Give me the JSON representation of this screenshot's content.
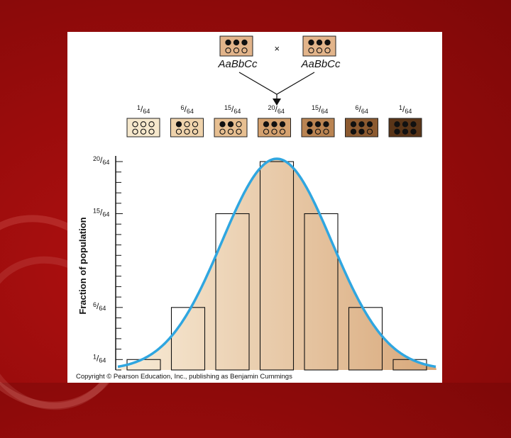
{
  "cross": {
    "parent1": "AaBbCc",
    "parent2": "AaBbCc",
    "operator": "×",
    "parent_alleles": [
      1,
      1,
      1,
      0,
      0,
      0
    ]
  },
  "offspring": [
    {
      "num": "1",
      "den": "64",
      "dark": 0,
      "color": "#f6e8cc"
    },
    {
      "num": "6",
      "den": "64",
      "dark": 1,
      "color": "#efd3ac"
    },
    {
      "num": "15",
      "den": "64",
      "dark": 2,
      "color": "#e7bf91"
    },
    {
      "num": "20",
      "den": "64",
      "dark": 3,
      "color": "#d4a16f"
    },
    {
      "num": "15",
      "den": "64",
      "dark": 4,
      "color": "#ba8452"
    },
    {
      "num": "6",
      "den": "64",
      "dark": 5,
      "color": "#8c5a30"
    },
    {
      "num": "1",
      "den": "64",
      "dark": 6,
      "color": "#5a3518"
    }
  ],
  "chart_data": {
    "type": "bar",
    "categories": [
      "0 dark",
      "1 dark",
      "2 dark",
      "3 dark",
      "4 dark",
      "5 dark",
      "6 dark"
    ],
    "values": [
      1,
      6,
      15,
      20,
      15,
      6,
      1
    ],
    "ylabel": "Fraction of population",
    "ylim": [
      0,
      20
    ],
    "yticks": [
      {
        "value": 1,
        "num": "1",
        "den": "64"
      },
      {
        "value": 6,
        "num": "6",
        "den": "64"
      },
      {
        "value": 15,
        "num": "15",
        "den": "64"
      },
      {
        "value": 20,
        "num": "20",
        "den": "64"
      }
    ],
    "curve_color": "#2fa6e0",
    "fill_colors": [
      "#f8ecd8",
      "#d8a87a"
    ]
  },
  "copyright": "Copyright © Pearson Education, Inc., publishing as Benjamin Cummings"
}
